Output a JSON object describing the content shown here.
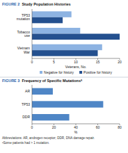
{
  "chart_data": [
    {
      "type": "bar",
      "orientation": "horizontal",
      "figure_label": "FIGURE 2",
      "title": "Study Population Histories",
      "categories": [
        "TP53 mutation",
        "Tobacco use",
        "Vietnam War"
      ],
      "series": [
        {
          "name": "Negative for history",
          "color": "#8db3e2",
          "values": [
            9,
            11,
            16
          ]
        },
        {
          "name": "Positive for history",
          "color": "#24508f",
          "values": [
            7,
            20,
            15
          ]
        }
      ],
      "xlabel": "Veterans, No.",
      "xlim": [
        0,
        20
      ],
      "xticks": [
        0,
        5,
        10,
        15,
        20
      ],
      "grid": false,
      "legend": "bottom"
    },
    {
      "type": "bar",
      "orientation": "horizontal",
      "figure_label": "FIGURE 3",
      "title": "Frequency of Specific Mutationsᵃ",
      "categories": [
        "AR",
        "TP53",
        "DDR"
      ],
      "values": [
        19,
        65,
        34
      ],
      "color": "#4f86c6",
      "xlabel": "%",
      "xlim": [
        0,
        80
      ],
      "xticks": [
        0,
        20,
        40,
        60,
        80
      ],
      "grid": false,
      "notes": [
        "Abbreviations: AR, androgen receptor; DDR, DNA damage repair.",
        "ᵃSome patients had > 1 mutation."
      ]
    }
  ]
}
